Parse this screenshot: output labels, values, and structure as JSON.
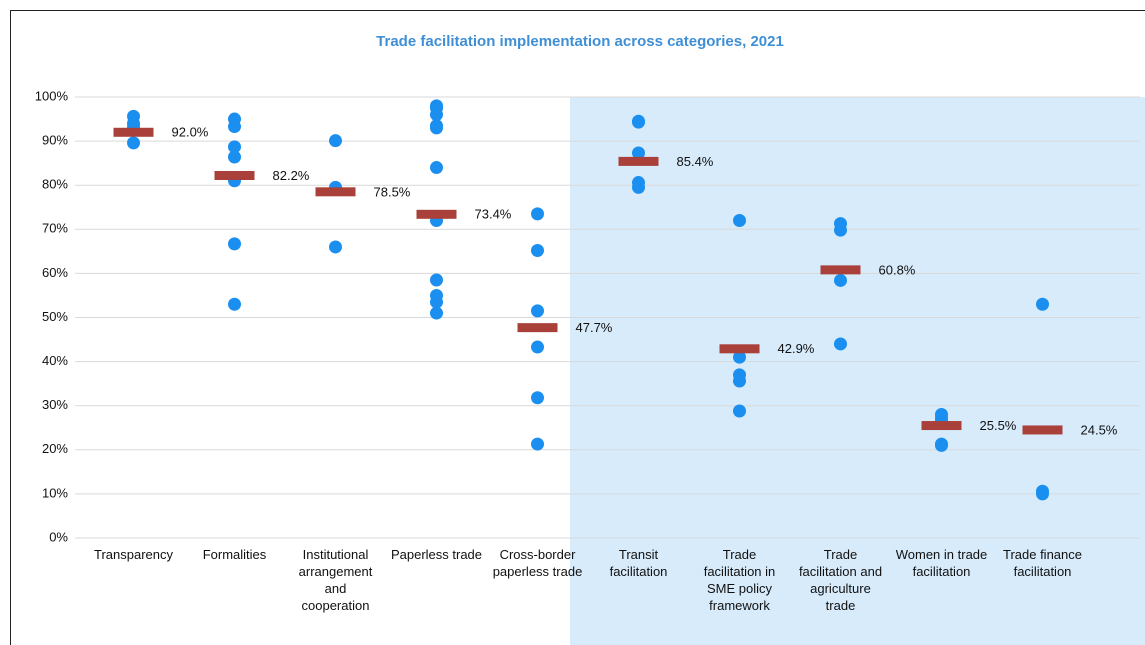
{
  "chart_data": {
    "type": "dot",
    "title": "Trade facilitation implementation across categories, 2021",
    "categories": [
      "Transparency",
      "Formalities",
      "Institutional arrangement and cooperation",
      "Paperless trade",
      "Cross-border paperless trade",
      "Transit facilitation",
      "Trade facilitation in SME policy framework",
      "Trade facilitation and agriculture trade",
      "Women in trade facilitation",
      "Trade finance facilitation"
    ],
    "points": [
      [
        95.6,
        94,
        93.2,
        89.6
      ],
      [
        95,
        93.3,
        88.7,
        86.4,
        81,
        66.7,
        53
      ],
      [
        90.1,
        79.5,
        66
      ],
      [
        98,
        97.5,
        96,
        93.5,
        93,
        84,
        72,
        58.5,
        55,
        53.5,
        51
      ],
      [
        73.5,
        65.2,
        51.5,
        43.3,
        31.8,
        21.3
      ],
      [
        94.5,
        94.3,
        87.3,
        80.6,
        79.5
      ],
      [
        72,
        41,
        37,
        35.6,
        28.8
      ],
      [
        71.3,
        69.8,
        58.4,
        44
      ],
      [
        28,
        27.2,
        26.5,
        21.3,
        21
      ],
      [
        53,
        10.6,
        10
      ]
    ],
    "averages": [
      92.0,
      82.2,
      78.5,
      73.4,
      47.7,
      85.4,
      42.9,
      60.8,
      25.5,
      24.5
    ],
    "value_labels": [
      "92.0%",
      "82.2%",
      "78.5%",
      "73.4%",
      "47.7%",
      "85.4%",
      "42.9%",
      "60.8%",
      "25.5%",
      "24.5%"
    ],
    "point_color": "#1a8ff0",
    "average_color": "#a9403a",
    "highlight_from": 5,
    "highlight_color": "#d7ebfb",
    "ylim": [
      0,
      100
    ],
    "yticks": [
      {
        "value": 0,
        "label": "0%"
      },
      {
        "value": 10,
        "label": "10%"
      },
      {
        "value": 20,
        "label": "20%"
      },
      {
        "value": 30,
        "label": "30%"
      },
      {
        "value": 40,
        "label": "40%"
      },
      {
        "value": 50,
        "label": "50%"
      },
      {
        "value": 60,
        "label": "60%"
      },
      {
        "value": 70,
        "label": "70%"
      },
      {
        "value": 80,
        "label": "80%"
      },
      {
        "value": 90,
        "label": "90%"
      },
      {
        "value": 100,
        "label": "100%"
      }
    ],
    "grid": true
  }
}
